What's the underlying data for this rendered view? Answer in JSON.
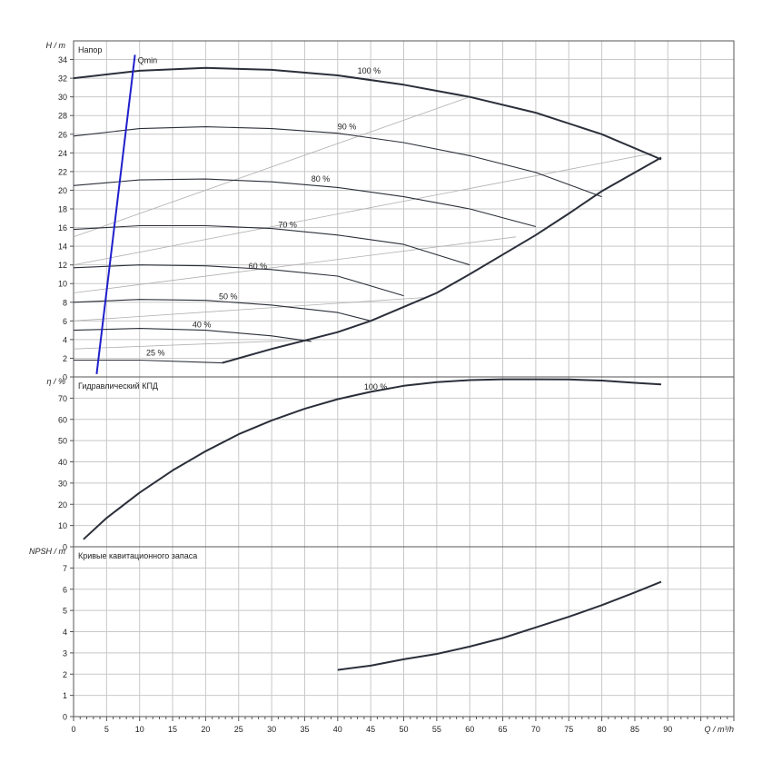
{
  "chart_data": [
    {
      "type": "line",
      "title": "Напор",
      "ylabel": "H / m",
      "ylim": [
        0,
        36
      ],
      "yticks": [
        0,
        2,
        4,
        6,
        8,
        10,
        12,
        14,
        16,
        18,
        20,
        22,
        24,
        26,
        28,
        30,
        32,
        34
      ],
      "grid": true,
      "series": [
        {
          "name": "100 %",
          "label_at": [
            43,
            32.5
          ],
          "x": [
            0,
            10,
            20,
            30,
            40,
            50,
            60,
            70,
            80,
            89
          ],
          "y": [
            32,
            32.8,
            33.1,
            32.9,
            32.3,
            31.3,
            30.0,
            28.3,
            26.0,
            23.3
          ]
        },
        {
          "name": "90 %",
          "label_at": [
            40,
            26.5
          ],
          "x": [
            0,
            10,
            20,
            30,
            40,
            50,
            60,
            70,
            80
          ],
          "y": [
            25.8,
            26.6,
            26.8,
            26.6,
            26.1,
            25.1,
            23.7,
            21.9,
            19.3
          ]
        },
        {
          "name": "80 %",
          "label_at": [
            36,
            20.9
          ],
          "x": [
            0,
            10,
            20,
            30,
            40,
            50,
            60,
            70
          ],
          "y": [
            20.5,
            21.1,
            21.2,
            20.9,
            20.3,
            19.3,
            18.0,
            16.1
          ]
        },
        {
          "name": "70 %",
          "label_at": [
            31,
            16.0
          ],
          "x": [
            0,
            10,
            20,
            30,
            40,
            50,
            60
          ],
          "y": [
            15.8,
            16.2,
            16.2,
            15.9,
            15.2,
            14.2,
            12.0
          ]
        },
        {
          "name": "60 %",
          "label_at": [
            26.5,
            11.6
          ],
          "x": [
            0,
            10,
            20,
            30,
            40,
            50
          ],
          "y": [
            11.7,
            12.0,
            11.9,
            11.5,
            10.8,
            8.7
          ]
        },
        {
          "name": "50 %",
          "label_at": [
            22,
            8.3
          ],
          "x": [
            0,
            10,
            20,
            30,
            40,
            45
          ],
          "y": [
            8.0,
            8.3,
            8.2,
            7.7,
            6.9,
            6.0
          ]
        },
        {
          "name": "40 %",
          "label_at": [
            18,
            5.3
          ],
          "x": [
            0,
            10,
            20,
            30,
            36
          ],
          "y": [
            5.0,
            5.2,
            5.0,
            4.4,
            3.8
          ]
        },
        {
          "name": "25 %",
          "label_at": [
            11,
            2.3
          ],
          "x": [
            0,
            10,
            22.5
          ],
          "y": [
            1.8,
            1.8,
            1.5
          ]
        }
      ],
      "envelope": {
        "x": [
          22.5,
          30,
          40,
          45,
          50,
          55,
          60,
          70,
          75,
          80,
          89
        ],
        "y": [
          1.5,
          3.0,
          4.8,
          6.0,
          7.5,
          9.0,
          11.0,
          15.2,
          17.5,
          19.9,
          23.5
        ]
      },
      "efficiency_lines": [
        {
          "x": [
            0,
            60
          ],
          "y": [
            15,
            30
          ]
        },
        {
          "x": [
            0,
            88
          ],
          "y": [
            12,
            24
          ]
        },
        {
          "x": [
            0,
            67
          ],
          "y": [
            9,
            15
          ]
        },
        {
          "x": [
            0,
            53
          ],
          "y": [
            6,
            8.5
          ]
        },
        {
          "x": [
            0,
            37
          ],
          "y": [
            3,
            4
          ]
        }
      ],
      "qmin": {
        "label": "Qmin",
        "x": [
          3.5,
          9.3
        ],
        "y": [
          0.3,
          34.5
        ],
        "color": "#1f1fcc"
      }
    },
    {
      "type": "line",
      "title": "Гидравлический КПД",
      "ylabel": "η / %",
      "ylim": [
        0,
        80
      ],
      "yticks": [
        0,
        10,
        20,
        30,
        40,
        50,
        60,
        70
      ],
      "grid": true,
      "series": [
        {
          "name": "100 %",
          "label_at": [
            44,
            74
          ],
          "x": [
            1.5,
            5,
            10,
            15,
            20,
            25,
            30,
            35,
            40,
            45,
            50,
            55,
            60,
            65,
            70,
            75,
            80,
            85,
            89
          ],
          "y": [
            3.5,
            13.5,
            25.5,
            36.0,
            45.0,
            53.0,
            59.5,
            65.0,
            69.5,
            73.0,
            75.8,
            77.5,
            78.5,
            78.9,
            78.9,
            78.8,
            78.3,
            77.2,
            76.5
          ]
        }
      ]
    },
    {
      "type": "line",
      "title": "Кривые кавитационного запаса",
      "ylabel": "NPSH / m",
      "xlabel": "Q / m³/h",
      "ylim": [
        0,
        8
      ],
      "yticks": [
        0,
        1,
        2,
        3,
        4,
        5,
        6,
        7
      ],
      "xlim": [
        0,
        100
      ],
      "xticks": [
        0,
        5,
        10,
        15,
        20,
        25,
        30,
        35,
        40,
        45,
        50,
        55,
        60,
        65,
        70,
        75,
        80,
        85,
        90
      ],
      "grid": true,
      "series": [
        {
          "name": "",
          "x": [
            40,
            45,
            50,
            55,
            60,
            65,
            70,
            75,
            80,
            85,
            89
          ],
          "y": [
            2.2,
            2.4,
            2.7,
            2.95,
            3.3,
            3.7,
            4.2,
            4.7,
            5.25,
            5.85,
            6.35
          ]
        }
      ]
    }
  ]
}
